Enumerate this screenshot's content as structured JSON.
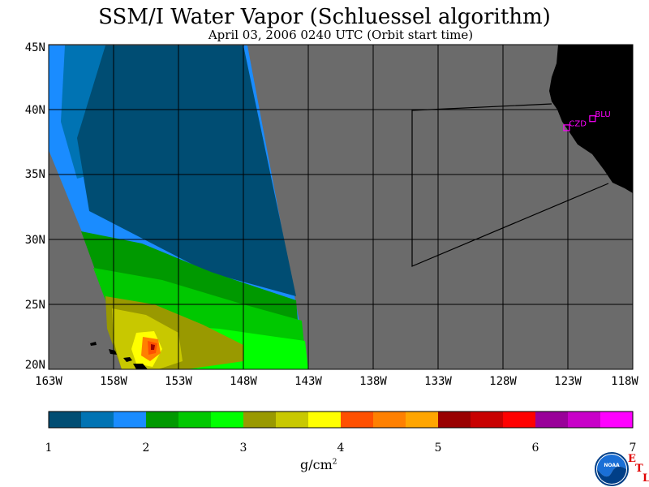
{
  "title": "SSM/I Water Vapor (Schluessel algorithm)",
  "subtitle": "April 03, 2006  0240 UTC  (Orbit start time)",
  "lat_labels": [
    "45N",
    "40N",
    "35N",
    "30N",
    "25N",
    "20N"
  ],
  "lon_labels": [
    "163W",
    "158W",
    "153W",
    "148W",
    "143W",
    "138W",
    "133W",
    "128W",
    "123W",
    "118W"
  ],
  "stations": [
    {
      "name": "CZD",
      "lon": -123.1,
      "lat": 38.6
    },
    {
      "name": "BLU",
      "lon": -121.1,
      "lat": 39.3
    }
  ],
  "colorbar": {
    "colors": [
      "#004d73",
      "#0073b3",
      "#1a8cff",
      "#009900",
      "#00c800",
      "#00ff00",
      "#999900",
      "#c8c800",
      "#ffff00",
      "#ff5000",
      "#ff8000",
      "#ffa500",
      "#990000",
      "#c80000",
      "#ff0000",
      "#990099",
      "#c800c8",
      "#ff00ff"
    ],
    "ticks": [
      "1",
      "2",
      "3",
      "4",
      "5",
      "6",
      "7"
    ],
    "units": "g/cm",
    "units_exp": "2"
  },
  "map": {
    "lon_range": [
      -163,
      -118
    ],
    "lat_range": [
      20,
      45
    ],
    "land_color": "#000000",
    "nodata_color": "#6b6b6b"
  },
  "logo": {
    "name": "NOAA",
    "text": "NOAA"
  },
  "etl": {
    "e": "E",
    "t": "T",
    "l": "L"
  }
}
